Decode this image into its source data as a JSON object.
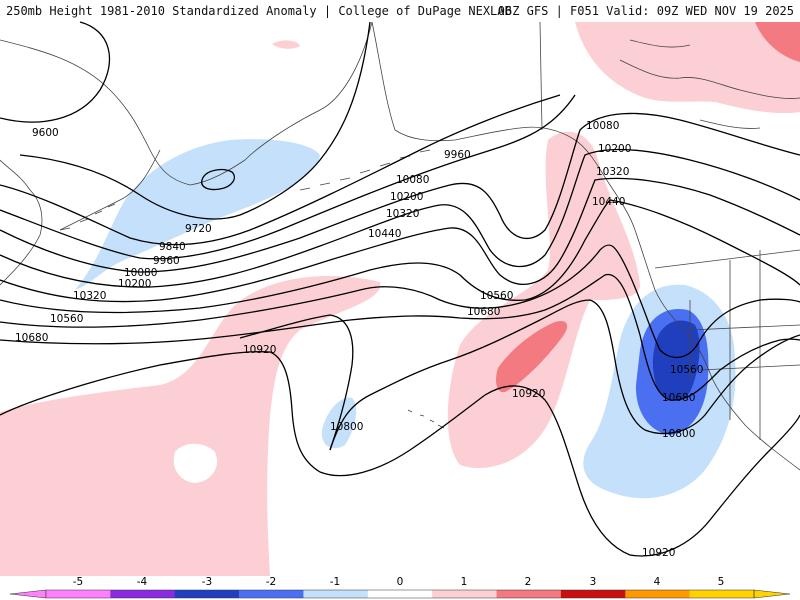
{
  "header": {
    "left": "250mb Height 1981-2010 Standardized Anomaly | College of DuPage NEXLAB",
    "right": "06Z GFS | F051 Valid: 09Z WED NOV 19 2025"
  },
  "colors": {
    "neg5": "#ff80ff",
    "neg4": "#8a2be2",
    "neg3": "#1f3fbf",
    "neg2": "#4a6ff0",
    "neg1": "#c5e0fb",
    "pos1": "#fbcfd3",
    "pos2": "#f37a80",
    "pos3": "#c81010",
    "pos4": "#ff9900",
    "pos5": "#ffd200"
  },
  "contour_labels": [
    {
      "id": "c9600",
      "text": "9600"
    },
    {
      "id": "c9720",
      "text": "9720"
    },
    {
      "id": "c9840",
      "text": "9840"
    },
    {
      "id": "c9960a",
      "text": "9960"
    },
    {
      "id": "c9960b",
      "text": "9960"
    },
    {
      "id": "c10080a",
      "text": "10080"
    },
    {
      "id": "c10080b",
      "text": "10080"
    },
    {
      "id": "c10080c",
      "text": "10080"
    },
    {
      "id": "c10200a",
      "text": "10200"
    },
    {
      "id": "c10200b",
      "text": "10200"
    },
    {
      "id": "c10200c",
      "text": "10200"
    },
    {
      "id": "c10320a",
      "text": "10320"
    },
    {
      "id": "c10320b",
      "text": "10320"
    },
    {
      "id": "c10320c",
      "text": "10320"
    },
    {
      "id": "c10440a",
      "text": "10440"
    },
    {
      "id": "c10440b",
      "text": "10440"
    },
    {
      "id": "c10560a",
      "text": "10560"
    },
    {
      "id": "c10560b",
      "text": "10560"
    },
    {
      "id": "c10560c",
      "text": "10560"
    },
    {
      "id": "c10680a",
      "text": "10680"
    },
    {
      "id": "c10680b",
      "text": "10680"
    },
    {
      "id": "c10680c",
      "text": "10680"
    },
    {
      "id": "c10800a",
      "text": "10800"
    },
    {
      "id": "c10800b",
      "text": "10800"
    },
    {
      "id": "c10920a",
      "text": "10920"
    },
    {
      "id": "c10920b",
      "text": "10920"
    },
    {
      "id": "c10920c",
      "text": "10920"
    }
  ],
  "colorbar": {
    "ticks": [
      "-5",
      "-4",
      "-3",
      "-2",
      "-1",
      "0",
      "1",
      "2",
      "3",
      "4",
      "5"
    ]
  }
}
